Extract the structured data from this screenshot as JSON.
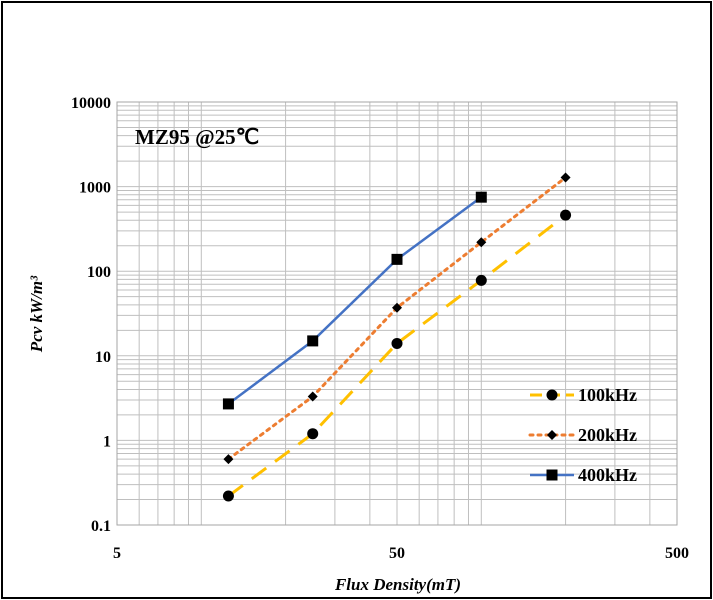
{
  "chart_data": {
    "type": "line",
    "title": "",
    "annotation": "MZ95 @25℃",
    "xlabel": "Flux Density(mT)",
    "ylabel": "Pcv kW/m³",
    "x_scale": "log",
    "y_scale": "log",
    "xlim": [
      5,
      500
    ],
    "ylim": [
      0.1,
      10000
    ],
    "x_tick_labels": [
      "5",
      "50",
      "500"
    ],
    "y_tick_labels": [
      "0.1",
      "1",
      "10",
      "100",
      "1000",
      "10000"
    ],
    "grid": true,
    "legend_position": "right",
    "series": [
      {
        "name": "100kHz",
        "color": "#FFC000",
        "line_style": "dashed",
        "marker": "circle",
        "x": [
          12.5,
          25,
          50,
          100,
          200
        ],
        "y": [
          0.22,
          1.2,
          14,
          78,
          460
        ]
      },
      {
        "name": "200kHz",
        "color": "#ED7D31",
        "line_style": "dotted",
        "marker": "diamond",
        "x": [
          12.5,
          25,
          50,
          100,
          200
        ],
        "y": [
          0.6,
          3.3,
          37,
          220,
          1280
        ]
      },
      {
        "name": "400kHz",
        "color": "#4472C4",
        "line_style": "solid",
        "marker": "square",
        "x": [
          12.5,
          25,
          50,
          100
        ],
        "y": [
          2.7,
          15,
          138,
          750
        ]
      }
    ]
  }
}
